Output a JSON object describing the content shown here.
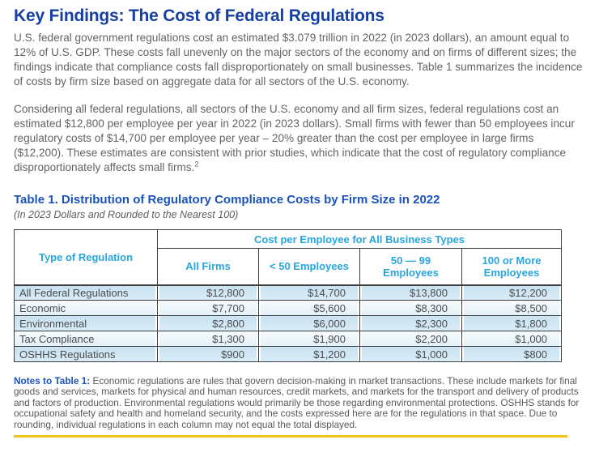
{
  "header": {
    "title": "Key Findings: The Cost of Federal Regulations"
  },
  "content": {
    "paragraph1": "U.S. federal government regulations cost an estimated $3.079 trillion in 2022 (in 2023 dollars), an amount equal to 12% of U.S. GDP. These costs fall unevenly on the major sectors of the economy and on firms of different sizes; the findings indicate that compliance costs fall disproportionately on small businesses. Table 1 summarizes the incidence of costs by firm size based on aggregate data for all sectors of the U.S. economy.",
    "paragraph2": "Considering all federal regulations, all sectors of the U.S. economy and all firm sizes, federal regulations cost an estimated $12,800 per employee per year in 2022 (in 2023 dollars). Small firms with fewer than 50 employees incur regulatory costs of $14,700 per employee per year – 20% greater than the cost per employee in large firms ($12,200). These estimates are consistent with prior studies, which indicate that the cost of regulatory compliance disproportionately affects small firms.",
    "footnote_marker": "2"
  },
  "table": {
    "title": "Table 1. Distribution of Regulatory Compliance Costs by Firm Size in 2022",
    "subtitle": "(In 2023 Dollars and Rounded to the Nearest 100)",
    "corner_header": "Type of Regulation",
    "group_header": "Cost per Employee for All Business Types",
    "columns": [
      "All Firms",
      "< 50 Employees",
      "50 — 99 Employees",
      "100 or More Employees"
    ],
    "rows": [
      {
        "label": "All Federal Regulations",
        "values": [
          "$12,800",
          "$14,700",
          "$13,800",
          "$12,200"
        ]
      },
      {
        "label": "Economic",
        "values": [
          "$7,700",
          "$5,600",
          "$8,300",
          "$8,500"
        ]
      },
      {
        "label": "Environmental",
        "values": [
          "$2,800",
          "$6,000",
          "$2,300",
          "$1,800"
        ]
      },
      {
        "label": "Tax Compliance",
        "values": [
          "$1,300",
          "$1,900",
          "$2,200",
          "$1,000"
        ]
      },
      {
        "label": "OSHHS Regulations",
        "values": [
          "$900",
          "$1,200",
          "$1,000",
          "$800"
        ]
      }
    ]
  },
  "notes": {
    "label": "Notes to Table 1:",
    "text": " Economic regulations are rules that govern decision-making in market transactions. These include markets for final goods and services, markets for physical and human resources, credit markets, and markets for the transport and delivery of products and factors of production. Environmental regulations would primarily be those regarding environmental protections. OSHHS stands for occupational safety and health and homeland security, and the costs expressed here are for the regulations in that space. Due to rounding, individual regulations in each column may not equal the total displayed."
  },
  "colors": {
    "heading_blue": "#163fa2",
    "table_title_blue": "#1b53ba",
    "table_header_cyan": "#29a5de",
    "row_shade_blue": "#cde5f3",
    "row_shade_light": "#eef6fb",
    "table_border": "#3e3e40",
    "body_text_gray": "#636466",
    "divider_yellow": "#f2c219"
  }
}
